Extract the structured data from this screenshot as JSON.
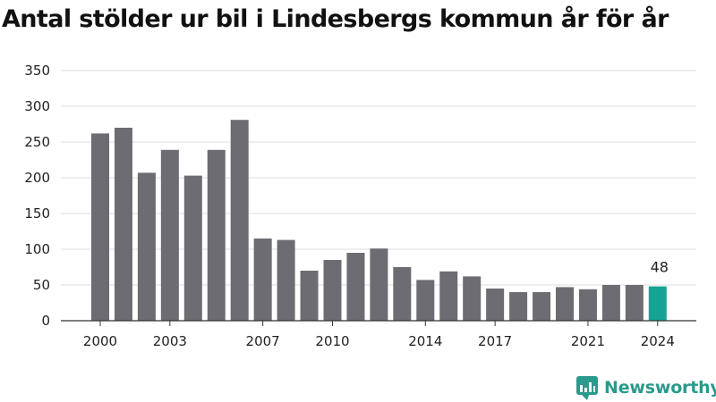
{
  "chart_data": {
    "type": "bar",
    "title": "Antal stölder ur bil i Lindesbergs kommun år för år",
    "categories": [
      "2000",
      "2001",
      "2002",
      "2003",
      "2004",
      "2005",
      "2006",
      "2007",
      "2008",
      "2009",
      "2010",
      "2011",
      "2012",
      "2013",
      "2014",
      "2015",
      "2016",
      "2017",
      "2018",
      "2019",
      "2020",
      "2021",
      "2022",
      "2023",
      "2024"
    ],
    "values": [
      262,
      270,
      207,
      239,
      203,
      239,
      281,
      115,
      113,
      70,
      85,
      95,
      101,
      75,
      57,
      69,
      62,
      45,
      40,
      40,
      47,
      44,
      50,
      50,
      48
    ],
    "x_tick_labels": [
      "2000",
      "2003",
      "2007",
      "2010",
      "2014",
      "2017",
      "2021",
      "2024"
    ],
    "y_ticks": [
      0,
      50,
      100,
      150,
      200,
      250,
      300,
      350
    ],
    "ylim": [
      0,
      350
    ],
    "xlabel": "",
    "ylabel": "",
    "grid": true,
    "highlight": {
      "category": "2024",
      "label": "48"
    },
    "colors": {
      "bar": "#6d6c72",
      "highlight": "#16a394",
      "grid": "#dddddd",
      "axis": "#333333"
    }
  },
  "logo": {
    "text": "Newsworthy",
    "icon": "newsworthy-logo-icon",
    "color": "#2a9a8c"
  }
}
